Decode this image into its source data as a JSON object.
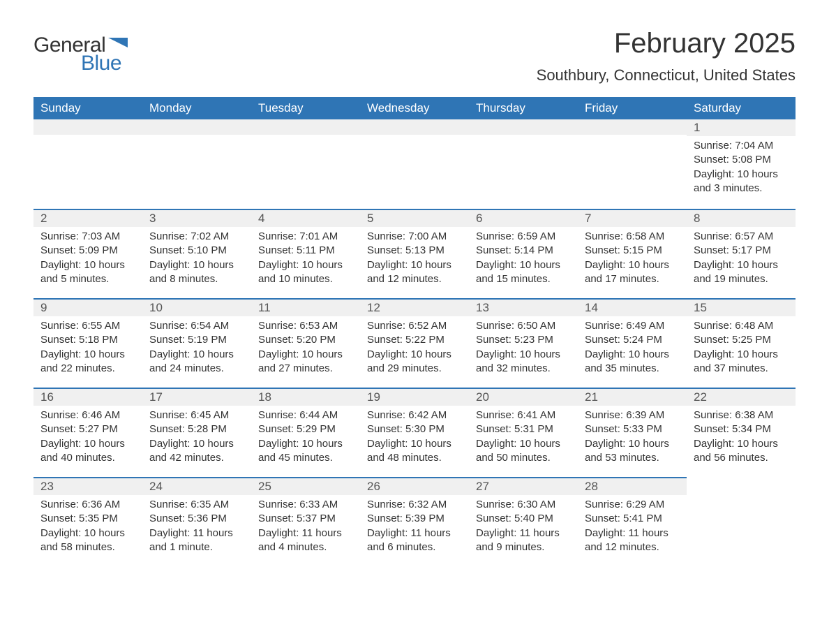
{
  "logo": {
    "text1": "General",
    "text2": "Blue",
    "flag_color": "#2f75b5"
  },
  "title": "February 2025",
  "location": "Southbury, Connecticut, United States",
  "colors": {
    "header_bg": "#2f75b5",
    "header_text": "#ffffff",
    "daynum_bg": "#f0f0f0",
    "row_border": "#2f75b5",
    "body_text": "#333333"
  },
  "weekdays": [
    "Sunday",
    "Monday",
    "Tuesday",
    "Wednesday",
    "Thursday",
    "Friday",
    "Saturday"
  ],
  "weeks": [
    [
      null,
      null,
      null,
      null,
      null,
      null,
      {
        "n": "1",
        "sunrise": "Sunrise: 7:04 AM",
        "sunset": "Sunset: 5:08 PM",
        "daylight": "Daylight: 10 hours and 3 minutes."
      }
    ],
    [
      {
        "n": "2",
        "sunrise": "Sunrise: 7:03 AM",
        "sunset": "Sunset: 5:09 PM",
        "daylight": "Daylight: 10 hours and 5 minutes."
      },
      {
        "n": "3",
        "sunrise": "Sunrise: 7:02 AM",
        "sunset": "Sunset: 5:10 PM",
        "daylight": "Daylight: 10 hours and 8 minutes."
      },
      {
        "n": "4",
        "sunrise": "Sunrise: 7:01 AM",
        "sunset": "Sunset: 5:11 PM",
        "daylight": "Daylight: 10 hours and 10 minutes."
      },
      {
        "n": "5",
        "sunrise": "Sunrise: 7:00 AM",
        "sunset": "Sunset: 5:13 PM",
        "daylight": "Daylight: 10 hours and 12 minutes."
      },
      {
        "n": "6",
        "sunrise": "Sunrise: 6:59 AM",
        "sunset": "Sunset: 5:14 PM",
        "daylight": "Daylight: 10 hours and 15 minutes."
      },
      {
        "n": "7",
        "sunrise": "Sunrise: 6:58 AM",
        "sunset": "Sunset: 5:15 PM",
        "daylight": "Daylight: 10 hours and 17 minutes."
      },
      {
        "n": "8",
        "sunrise": "Sunrise: 6:57 AM",
        "sunset": "Sunset: 5:17 PM",
        "daylight": "Daylight: 10 hours and 19 minutes."
      }
    ],
    [
      {
        "n": "9",
        "sunrise": "Sunrise: 6:55 AM",
        "sunset": "Sunset: 5:18 PM",
        "daylight": "Daylight: 10 hours and 22 minutes."
      },
      {
        "n": "10",
        "sunrise": "Sunrise: 6:54 AM",
        "sunset": "Sunset: 5:19 PM",
        "daylight": "Daylight: 10 hours and 24 minutes."
      },
      {
        "n": "11",
        "sunrise": "Sunrise: 6:53 AM",
        "sunset": "Sunset: 5:20 PM",
        "daylight": "Daylight: 10 hours and 27 minutes."
      },
      {
        "n": "12",
        "sunrise": "Sunrise: 6:52 AM",
        "sunset": "Sunset: 5:22 PM",
        "daylight": "Daylight: 10 hours and 29 minutes."
      },
      {
        "n": "13",
        "sunrise": "Sunrise: 6:50 AM",
        "sunset": "Sunset: 5:23 PM",
        "daylight": "Daylight: 10 hours and 32 minutes."
      },
      {
        "n": "14",
        "sunrise": "Sunrise: 6:49 AM",
        "sunset": "Sunset: 5:24 PM",
        "daylight": "Daylight: 10 hours and 35 minutes."
      },
      {
        "n": "15",
        "sunrise": "Sunrise: 6:48 AM",
        "sunset": "Sunset: 5:25 PM",
        "daylight": "Daylight: 10 hours and 37 minutes."
      }
    ],
    [
      {
        "n": "16",
        "sunrise": "Sunrise: 6:46 AM",
        "sunset": "Sunset: 5:27 PM",
        "daylight": "Daylight: 10 hours and 40 minutes."
      },
      {
        "n": "17",
        "sunrise": "Sunrise: 6:45 AM",
        "sunset": "Sunset: 5:28 PM",
        "daylight": "Daylight: 10 hours and 42 minutes."
      },
      {
        "n": "18",
        "sunrise": "Sunrise: 6:44 AM",
        "sunset": "Sunset: 5:29 PM",
        "daylight": "Daylight: 10 hours and 45 minutes."
      },
      {
        "n": "19",
        "sunrise": "Sunrise: 6:42 AM",
        "sunset": "Sunset: 5:30 PM",
        "daylight": "Daylight: 10 hours and 48 minutes."
      },
      {
        "n": "20",
        "sunrise": "Sunrise: 6:41 AM",
        "sunset": "Sunset: 5:31 PM",
        "daylight": "Daylight: 10 hours and 50 minutes."
      },
      {
        "n": "21",
        "sunrise": "Sunrise: 6:39 AM",
        "sunset": "Sunset: 5:33 PM",
        "daylight": "Daylight: 10 hours and 53 minutes."
      },
      {
        "n": "22",
        "sunrise": "Sunrise: 6:38 AM",
        "sunset": "Sunset: 5:34 PM",
        "daylight": "Daylight: 10 hours and 56 minutes."
      }
    ],
    [
      {
        "n": "23",
        "sunrise": "Sunrise: 6:36 AM",
        "sunset": "Sunset: 5:35 PM",
        "daylight": "Daylight: 10 hours and 58 minutes."
      },
      {
        "n": "24",
        "sunrise": "Sunrise: 6:35 AM",
        "sunset": "Sunset: 5:36 PM",
        "daylight": "Daylight: 11 hours and 1 minute."
      },
      {
        "n": "25",
        "sunrise": "Sunrise: 6:33 AM",
        "sunset": "Sunset: 5:37 PM",
        "daylight": "Daylight: 11 hours and 4 minutes."
      },
      {
        "n": "26",
        "sunrise": "Sunrise: 6:32 AM",
        "sunset": "Sunset: 5:39 PM",
        "daylight": "Daylight: 11 hours and 6 minutes."
      },
      {
        "n": "27",
        "sunrise": "Sunrise: 6:30 AM",
        "sunset": "Sunset: 5:40 PM",
        "daylight": "Daylight: 11 hours and 9 minutes."
      },
      {
        "n": "28",
        "sunrise": "Sunrise: 6:29 AM",
        "sunset": "Sunset: 5:41 PM",
        "daylight": "Daylight: 11 hours and 12 minutes."
      },
      null
    ]
  ]
}
